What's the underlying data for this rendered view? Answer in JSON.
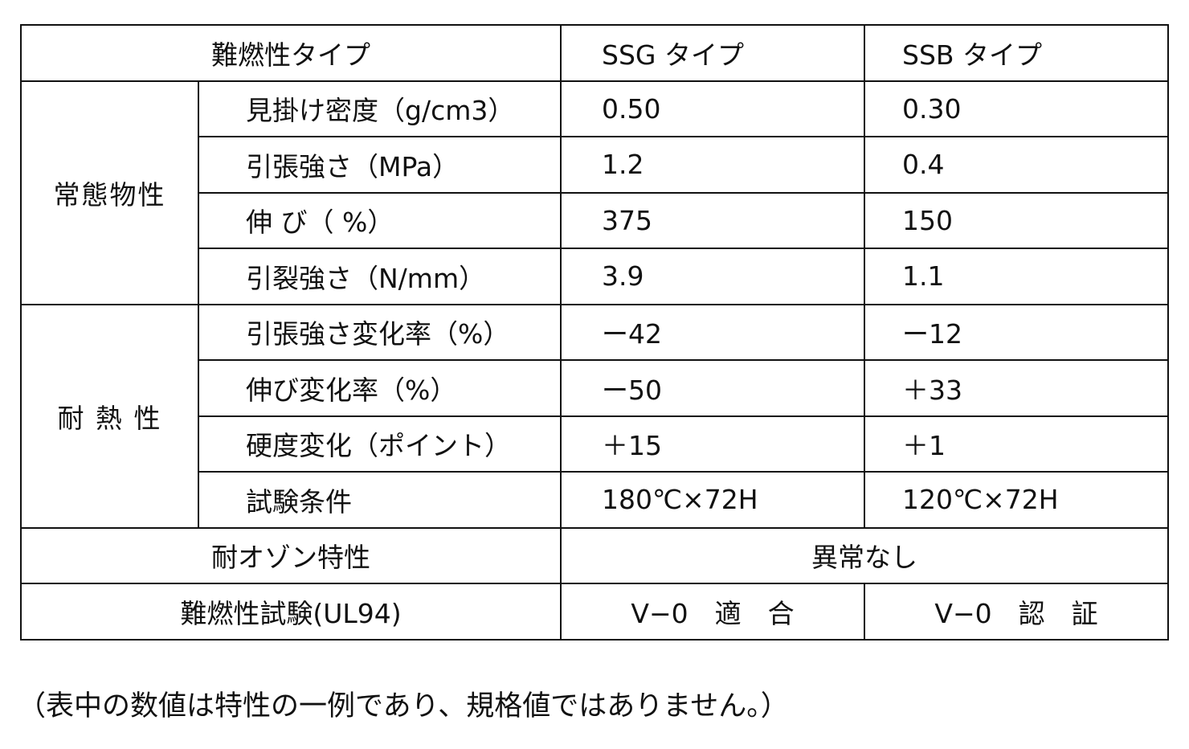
{
  "header": {
    "type_label": "難燃性タイプ",
    "ssg": "SSG タイプ",
    "ssb": "SSB タイプ"
  },
  "groups": {
    "normal": "常態物性",
    "heat": "耐 熱 性"
  },
  "rows": [
    {
      "label": "見掛け密度（g/cm3）",
      "ssg": "0.50",
      "ssb": "0.30"
    },
    {
      "label": "引張強さ（MPa）",
      "ssg": "1.2",
      "ssb": "0.4"
    },
    {
      "label": "伸 び（ %）",
      "ssg": "375",
      "ssb": "150"
    },
    {
      "label": "引裂強さ（N/mm）",
      "ssg": "3.9",
      "ssb": "1.1"
    },
    {
      "label": "引張強さ変化率（%）",
      "ssg": "ー42",
      "ssb": "ー12"
    },
    {
      "label": "伸び変化率（%）",
      "ssg": "ー50",
      "ssb": "＋33"
    },
    {
      "label": "硬度変化（ポイント）",
      "ssg": "＋15",
      "ssb": "＋1"
    },
    {
      "label": "試験条件",
      "ssg": "180℃×72H",
      "ssb": "120℃×72H"
    }
  ],
  "ozone": {
    "label": "耐オゾン特性",
    "value": "異常なし"
  },
  "ul94": {
    "label": "難燃性試験(UL94)",
    "ssg": "V−0　適　合",
    "ssb": "V−0　認　証"
  },
  "note": "（表中の数値は特性の一例であり、規格値ではありません。）"
}
